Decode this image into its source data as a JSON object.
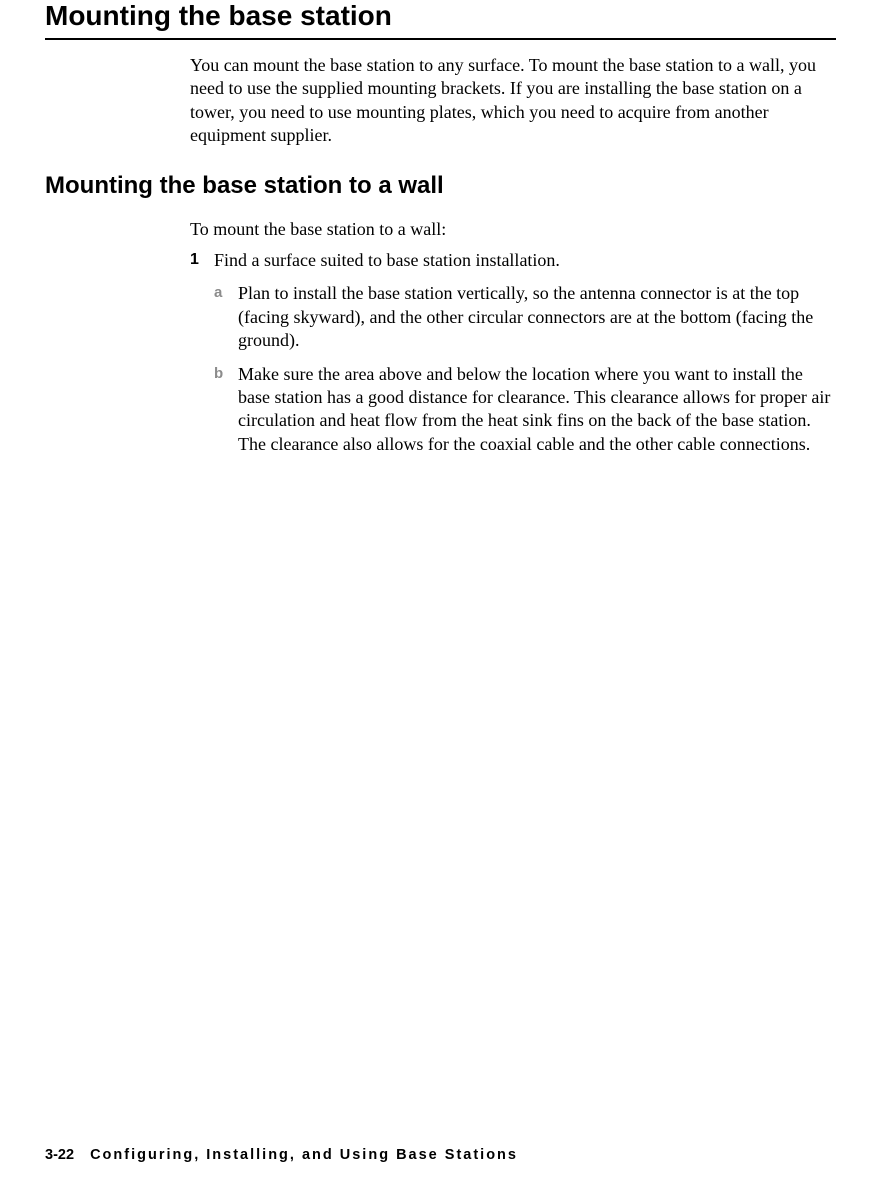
{
  "title": "Mounting the base station",
  "intro": "You can mount the base station to any surface. To mount the base station to a wall, you need to use the supplied mounting brackets. If you are installing the base station on a tower, you need to use mounting plates, which you need to acquire from another equipment supplier.",
  "subhead": "Mounting the base station to a wall",
  "lead": "To mount the base station to a wall:",
  "step1_num": "1",
  "step1_text": "Find a surface suited to base station installation.",
  "sub_a_letter": "a",
  "sub_a_text": "Plan to install the base station vertically, so the antenna connector is at the top (facing skyward), and the other circular connectors are at the bottom (facing the ground).",
  "sub_b_letter": "b",
  "sub_b_text": "Make sure the area above and below the location where you want to install the base station has a good distance for clearance. This clearance allows for proper air circulation and heat flow from the heat sink fins on the back of the base station. The clearance also allows for the coaxial cable and the other cable connections.",
  "footer_page": "3-22",
  "footer_chapter": "Configuring, Installing, and Using Base Stations"
}
